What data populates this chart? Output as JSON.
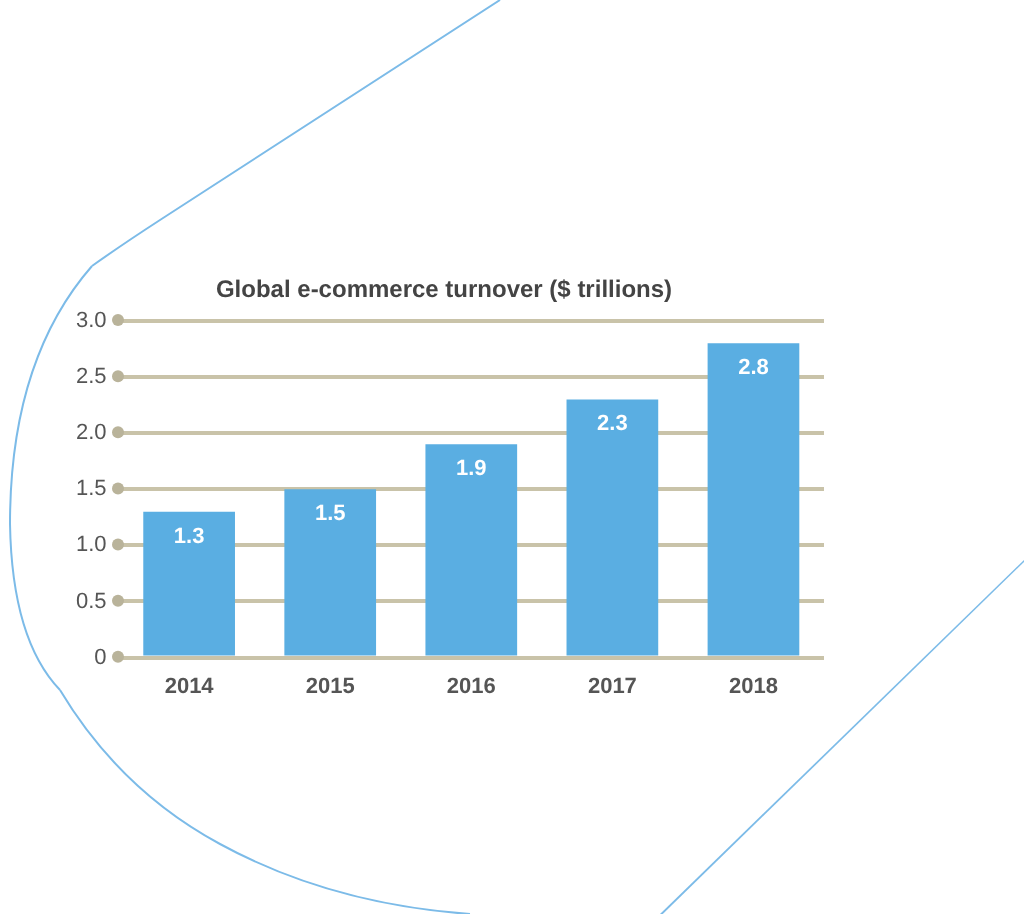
{
  "chart_data": {
    "type": "bar",
    "title": "Global e-commerce turnover ($ trillions)",
    "categories": [
      "2014",
      "2015",
      "2016",
      "2017",
      "2018"
    ],
    "values": [
      1.3,
      1.5,
      1.9,
      2.3,
      2.8
    ],
    "color": "#5aaee2",
    "ylim": [
      0,
      3
    ],
    "yticks": [
      0,
      0.5,
      {
        "value": 1,
        "label": "1.0"
      },
      1.5,
      {
        "value": 2,
        "label": "2.0"
      },
      2.5,
      {
        "value": 3,
        "label": "3.0"
      }
    ],
    "grid": "y",
    "data_labels": true
  }
}
